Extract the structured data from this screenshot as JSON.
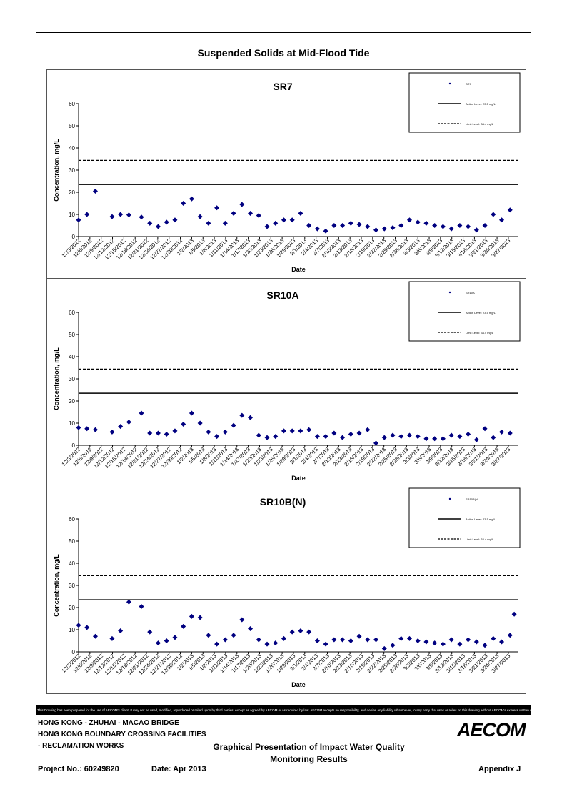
{
  "figure_title": "Suspended Solids at Mid-Flood Tide",
  "disclaimer": "This Drawing has been prepared for the use of AECOM's client. It may not be used, modified, reproduced or relied upon by third parties, except as agreed by AECOM or as required by law. AECOM accepts no responsibility, and denies any liability whatsoever, to any party that uses or relies on this drawing without AECOM's express written consent.",
  "footer": {
    "project_line1": "HONG KONG - ZHUHAI - MACAO BRIDGE",
    "project_line2": "HONG KONG BOUNDARY CROSSING FACILITIES",
    "project_line3": "- RECLAMATION WORKS",
    "report_title_line1": "Graphical Presentation of Impact Water Quality",
    "report_title_line2": "Monitoring Results",
    "project_no": "Project No.: 60249820",
    "date": "Date: Apr 2013",
    "appendix": "Appendix J",
    "logo": "AECOM"
  },
  "chart_data": [
    {
      "type": "scatter",
      "title": "SR7",
      "xlabel": "Date",
      "ylabel": "Concentration, mg/L",
      "ylim": [
        0,
        60
      ],
      "yticks": [
        0,
        10,
        20,
        30,
        40,
        50,
        60
      ],
      "x_range": [
        "12/3/2012",
        "3/29/2013"
      ],
      "tick_labels": [
        "12/3/2012",
        "12/6/2012",
        "12/9/2012",
        "12/12/2012",
        "12/15/2012",
        "12/18/2012",
        "12/21/2012",
        "12/24/2012",
        "12/27/2012",
        "12/30/2012",
        "1/2/2013",
        "1/5/2013",
        "1/8/2013",
        "1/11/2013",
        "1/14/2013",
        "1/17/2013",
        "1/20/2013",
        "1/23/2013",
        "1/26/2013",
        "1/29/2013",
        "2/1/2013",
        "2/4/2013",
        "2/7/2013",
        "2/10/2013",
        "2/13/2013",
        "2/16/2013",
        "2/19/2013",
        "2/22/2013",
        "2/25/2013",
        "2/28/2013",
        "3/3/2013",
        "3/6/2013",
        "3/9/2013",
        "3/12/2013",
        "3/15/2013",
        "3/18/2013",
        "3/21/2013",
        "3/24/2013",
        "3/27/2013"
      ],
      "legend": {
        "series": "SR7",
        "action": "Action Level: 23.5 mg/L",
        "limit": "Limit Level: 34.4 mg/L"
      },
      "action_level": 23.5,
      "limit_level": 34.4,
      "series": [
        {
          "name": "SR7",
          "points": [
            [
              0,
              7.5
            ],
            [
              1,
              10
            ],
            [
              2,
              20.5
            ],
            [
              4,
              9
            ],
            [
              5,
              10
            ],
            [
              6,
              9.8
            ],
            [
              7.5,
              8.8
            ],
            [
              8.5,
              6
            ],
            [
              9.5,
              4.5
            ],
            [
              10.5,
              6.5
            ],
            [
              11.5,
              7.5
            ],
            [
              12.5,
              15
            ],
            [
              13.5,
              17
            ],
            [
              14.5,
              9
            ],
            [
              15.5,
              6
            ],
            [
              16.5,
              13
            ],
            [
              17.5,
              6
            ],
            [
              18.5,
              10.5
            ],
            [
              19.5,
              14.5
            ],
            [
              20.5,
              10.5
            ],
            [
              21.5,
              9.5
            ],
            [
              22.5,
              4.5
            ],
            [
              23.5,
              6
            ],
            [
              24.5,
              7.5
            ],
            [
              25.5,
              7.5
            ],
            [
              26.5,
              10.5
            ],
            [
              27.5,
              5
            ],
            [
              28.5,
              3.5
            ],
            [
              29.5,
              2.5
            ],
            [
              30.5,
              5
            ],
            [
              31.5,
              5
            ],
            [
              32.5,
              6
            ],
            [
              33.5,
              5.5
            ],
            [
              34.5,
              4.5
            ],
            [
              35.5,
              3
            ],
            [
              36.5,
              3.5
            ],
            [
              37.5,
              4
            ],
            [
              38.5,
              5
            ],
            [
              39.5,
              7.5
            ],
            [
              40.5,
              6.5
            ],
            [
              41.5,
              6
            ],
            [
              42.5,
              5
            ],
            [
              43.5,
              4.5
            ],
            [
              44.5,
              3.5
            ],
            [
              45.5,
              5
            ],
            [
              46.5,
              4.5
            ],
            [
              47.5,
              3
            ],
            [
              48.5,
              5
            ],
            [
              49.5,
              10
            ],
            [
              50.5,
              7.5
            ],
            [
              51.5,
              12
            ]
          ]
        }
      ]
    },
    {
      "type": "scatter",
      "title": "SR10A",
      "xlabel": "Date",
      "ylabel": "Concentration, mg/L",
      "ylim": [
        0,
        60
      ],
      "yticks": [
        0,
        10,
        20,
        30,
        40,
        50,
        60
      ],
      "x_range": [
        "12/3/2012",
        "3/29/2013"
      ],
      "tick_labels": [
        "12/3/2012",
        "12/6/2012",
        "12/9/2012",
        "12/12/2012",
        "12/15/2012",
        "12/18/2012",
        "12/21/2012",
        "12/24/2012",
        "12/27/2012",
        "12/30/2012",
        "1/2/2013",
        "1/5/2013",
        "1/8/2013",
        "1/11/2013",
        "1/14/2013",
        "1/17/2013",
        "1/20/2013",
        "1/23/2013",
        "1/26/2013",
        "1/29/2013",
        "2/1/2013",
        "2/4/2013",
        "2/7/2013",
        "2/10/2013",
        "2/13/2013",
        "2/16/2013",
        "2/19/2013",
        "2/22/2013",
        "2/25/2013",
        "2/28/2013",
        "3/3/2013",
        "3/6/2013",
        "3/9/2013",
        "3/12/2013",
        "3/15/2013",
        "3/18/2013",
        "3/21/2013",
        "3/24/2013",
        "3/27/2013"
      ],
      "legend": {
        "series": "SR10A",
        "action": "Action Level: 23.5 mg/L",
        "limit": "Limit Level: 34.4 mg/L"
      },
      "action_level": 23.5,
      "limit_level": 34.4,
      "series": [
        {
          "name": "SR10A",
          "points": [
            [
              0,
              8
            ],
            [
              1,
              7.5
            ],
            [
              2,
              7
            ],
            [
              4,
              6
            ],
            [
              5,
              8.5
            ],
            [
              6,
              10.5
            ],
            [
              7.5,
              14.5
            ],
            [
              8.5,
              5.5
            ],
            [
              9.5,
              5.5
            ],
            [
              10.5,
              5
            ],
            [
              11.5,
              6.5
            ],
            [
              12.5,
              9.5
            ],
            [
              13.5,
              14.5
            ],
            [
              14.5,
              10
            ],
            [
              15.5,
              6
            ],
            [
              16.5,
              4
            ],
            [
              17.5,
              6
            ],
            [
              18.5,
              9
            ],
            [
              19.5,
              13.5
            ],
            [
              20.5,
              12.5
            ],
            [
              21.5,
              4.5
            ],
            [
              22.5,
              3.5
            ],
            [
              23.5,
              4
            ],
            [
              24.5,
              6.5
            ],
            [
              25.5,
              6.5
            ],
            [
              26.5,
              6.5
            ],
            [
              27.5,
              7
            ],
            [
              28.5,
              4
            ],
            [
              29.5,
              4
            ],
            [
              30.5,
              5.5
            ],
            [
              31.5,
              3.5
            ],
            [
              32.5,
              5
            ],
            [
              33.5,
              5.5
            ],
            [
              34.5,
              7
            ],
            [
              35.5,
              1
            ],
            [
              36.5,
              3.5
            ],
            [
              37.5,
              4.5
            ],
            [
              38.5,
              4
            ],
            [
              39.5,
              4.5
            ],
            [
              40.5,
              4
            ],
            [
              41.5,
              3
            ],
            [
              42.5,
              3
            ],
            [
              43.5,
              3
            ],
            [
              44.5,
              4.5
            ],
            [
              45.5,
              4
            ],
            [
              46.5,
              5
            ],
            [
              47.5,
              2.5
            ],
            [
              48.5,
              7.5
            ],
            [
              49.5,
              3.5
            ],
            [
              50.5,
              6
            ],
            [
              51.5,
              5.5
            ]
          ]
        }
      ]
    },
    {
      "type": "scatter",
      "title": "SR10B(N)",
      "xlabel": "Date",
      "ylabel": "Concentration, mg/L",
      "ylim": [
        0,
        60
      ],
      "yticks": [
        0,
        10,
        20,
        30,
        40,
        50,
        60
      ],
      "x_range": [
        "12/3/2012",
        "3/29/2013"
      ],
      "tick_labels": [
        "12/3/2012",
        "12/6/2012",
        "12/9/2012",
        "12/12/2012",
        "12/15/2012",
        "12/18/2012",
        "12/21/2012",
        "12/24/2012",
        "12/27/2012",
        "12/30/2012",
        "1/2/2013",
        "1/5/2013",
        "1/8/2013",
        "1/11/2013",
        "1/14/2013",
        "1/17/2013",
        "1/20/2013",
        "1/23/2013",
        "1/26/2013",
        "1/29/2013",
        "2/1/2013",
        "2/4/2013",
        "2/7/2013",
        "2/10/2013",
        "2/13/2013",
        "2/16/2013",
        "2/19/2013",
        "2/22/2013",
        "2/25/2013",
        "2/28/2013",
        "3/3/2013",
        "3/6/2013",
        "3/9/2013",
        "3/12/2013",
        "3/15/2013",
        "3/18/2013",
        "3/21/2013",
        "3/24/2013",
        "3/27/2013"
      ],
      "legend": {
        "series": "SR10B(N)",
        "action": "Action Level: 23.5 mg/L",
        "limit": "Limit Level: 34.4 mg/L"
      },
      "action_level": 23.5,
      "limit_level": 34.4,
      "series": [
        {
          "name": "SR10B(N)",
          "points": [
            [
              0,
              12
            ],
            [
              1,
              11
            ],
            [
              2,
              7
            ],
            [
              4,
              6
            ],
            [
              5,
              9.5
            ],
            [
              6,
              22.5
            ],
            [
              7.5,
              20.5
            ],
            [
              8.5,
              9
            ],
            [
              9.5,
              4
            ],
            [
              10.5,
              5
            ],
            [
              11.5,
              6.5
            ],
            [
              12.5,
              11.5
            ],
            [
              13.5,
              16
            ],
            [
              14.5,
              15.5
            ],
            [
              15.5,
              7.5
            ],
            [
              16.5,
              3.5
            ],
            [
              17.5,
              5.5
            ],
            [
              18.5,
              7.5
            ],
            [
              19.5,
              14.5
            ],
            [
              20.5,
              10.5
            ],
            [
              21.5,
              5.5
            ],
            [
              22.5,
              3.5
            ],
            [
              23.5,
              4
            ],
            [
              24.5,
              6
            ],
            [
              25.5,
              9
            ],
            [
              26.5,
              9.5
            ],
            [
              27.5,
              9
            ],
            [
              28.5,
              5
            ],
            [
              29.5,
              3.5
            ],
            [
              30.5,
              5.5
            ],
            [
              31.5,
              5.5
            ],
            [
              32.5,
              5
            ],
            [
              33.5,
              7
            ],
            [
              34.5,
              5.5
            ],
            [
              35.5,
              5.5
            ],
            [
              36.5,
              1.5
            ],
            [
              37.5,
              3
            ],
            [
              38.5,
              6
            ],
            [
              39.5,
              6
            ],
            [
              40.5,
              5
            ],
            [
              41.5,
              4.5
            ],
            [
              42.5,
              4
            ],
            [
              43.5,
              3.5
            ],
            [
              44.5,
              5.5
            ],
            [
              45.5,
              3.5
            ],
            [
              46.5,
              5.5
            ],
            [
              47.5,
              4.5
            ],
            [
              48.5,
              3
            ],
            [
              49.5,
              6
            ],
            [
              50.5,
              4.5
            ],
            [
              51.5,
              7.5
            ],
            [
              52,
              17
            ]
          ]
        }
      ]
    }
  ]
}
